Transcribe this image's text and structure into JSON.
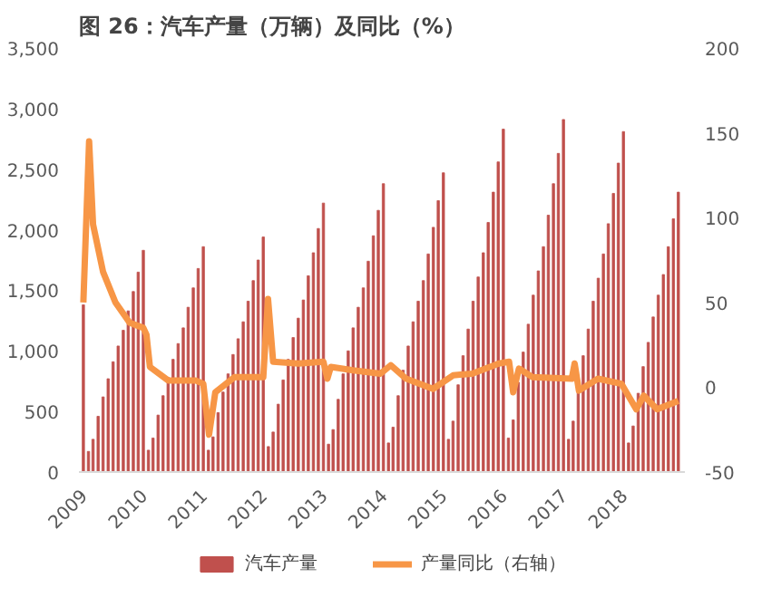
{
  "chart_data": {
    "type": "bar",
    "title": "图 26：汽车产量（万辆）及同比（%）",
    "x": [
      "2009-01",
      "2009-02",
      "2009-03",
      "2009-04",
      "2009-05",
      "2009-06",
      "2009-07",
      "2009-08",
      "2009-09",
      "2009-10",
      "2009-11",
      "2009-12",
      "2010-01",
      "2010-02",
      "2010-03",
      "2010-04",
      "2010-05",
      "2010-06",
      "2010-07",
      "2010-08",
      "2010-09",
      "2010-10",
      "2010-11",
      "2010-12",
      "2011-01",
      "2011-02",
      "2011-03",
      "2011-04",
      "2011-05",
      "2011-06",
      "2011-07",
      "2011-08",
      "2011-09",
      "2011-10",
      "2011-11",
      "2011-12",
      "2012-01",
      "2012-02",
      "2012-03",
      "2012-04",
      "2012-05",
      "2012-06",
      "2012-07",
      "2012-08",
      "2012-09",
      "2012-10",
      "2012-11",
      "2012-12",
      "2013-01",
      "2013-02",
      "2013-03",
      "2013-04",
      "2013-05",
      "2013-06",
      "2013-07",
      "2013-08",
      "2013-09",
      "2013-10",
      "2013-11",
      "2013-12",
      "2014-01",
      "2014-02",
      "2014-03",
      "2014-04",
      "2014-05",
      "2014-06",
      "2014-07",
      "2014-08",
      "2014-09",
      "2014-10",
      "2014-11",
      "2014-12",
      "2015-01",
      "2015-02",
      "2015-03",
      "2015-04",
      "2015-05",
      "2015-06",
      "2015-07",
      "2015-08",
      "2015-09",
      "2015-10",
      "2015-11",
      "2015-12",
      "2016-01",
      "2016-02",
      "2016-03",
      "2016-04",
      "2016-05",
      "2016-06",
      "2016-07",
      "2016-08",
      "2016-09",
      "2016-10",
      "2016-11",
      "2016-12",
      "2017-01",
      "2017-02",
      "2017-03",
      "2017-04",
      "2017-05",
      "2017-06",
      "2017-07",
      "2017-08",
      "2017-09",
      "2017-10",
      "2017-11",
      "2017-12",
      "2018-01",
      "2018-02",
      "2018-03",
      "2018-04",
      "2018-05",
      "2018-06",
      "2018-07",
      "2018-08",
      "2018-09",
      "2018-10",
      "2018-11",
      "2018-12"
    ],
    "series": [
      {
        "name": "汽车产量",
        "color": "#c0504d",
        "values": [
          1380,
          170,
          270,
          460,
          620,
          770,
          910,
          1040,
          1170,
          1330,
          1490,
          1650,
          1830,
          180,
          280,
          470,
          630,
          780,
          930,
          1060,
          1190,
          1360,
          1520,
          1680,
          1860,
          180,
          290,
          490,
          660,
          810,
          970,
          1100,
          1240,
          1410,
          1580,
          1750,
          1940,
          210,
          330,
          560,
          760,
          930,
          1110,
          1270,
          1420,
          1620,
          1810,
          2010,
          2220,
          230,
          350,
          600,
          810,
          1000,
          1190,
          1360,
          1520,
          1740,
          1950,
          2160,
          2380,
          240,
          370,
          630,
          840,
          1040,
          1240,
          1410,
          1580,
          1800,
          2020,
          2240,
          2470,
          270,
          420,
          720,
          960,
          1180,
          1410,
          1610,
          1810,
          2060,
          2310,
          2560,
          2830,
          280,
          430,
          740,
          990,
          1220,
          1460,
          1660,
          1860,
          2120,
          2380,
          2630,
          2910,
          270,
          420,
          710,
          960,
          1180,
          1410,
          1600,
          1800,
          2050,
          2300,
          2550,
          2810,
          240,
          380,
          650,
          870,
          1070,
          1280,
          1460,
          1630,
          1860,
          2090,
          2310
        ]
      },
      {
        "name": "产量同比（右轴）",
        "type": "line",
        "axis": "y2",
        "color": "#f79646",
        "x": [
          "2009-01-01",
          "2009-02-05",
          "2009-03-01",
          "2009-05-01",
          "2009-07-15",
          "2009-10-10",
          "2010-01-01",
          "2010-01-20",
          "2010-02-10",
          "2010-06-01",
          "2010-11-15",
          "2011-01-01",
          "2011-02-05",
          "2011-03-15",
          "2011-07-10",
          "2012-01-01",
          "2012-01-30",
          "2012-03-01",
          "2012-08-01",
          "2013-01-01",
          "2013-01-25",
          "2013-02-15",
          "2013-07-01",
          "2013-12-15",
          "2014-02-15",
          "2014-05-20",
          "2014-10-30",
          "2015-03-01",
          "2015-06-25",
          "2015-12-05",
          "2016-02-05",
          "2016-03-01",
          "2016-04-05",
          "2016-06-25",
          "2017-02-20",
          "2017-03-10",
          "2017-04-05",
          "2017-07-30",
          "2017-12-20",
          "2018-03-20",
          "2018-05-05",
          "2018-07-25",
          "2018-12-01"
        ],
        "values": [
          50,
          145,
          96,
          68,
          50,
          38,
          35,
          31,
          12,
          4,
          4,
          2,
          -28,
          -3,
          6,
          6,
          52,
          15,
          14,
          15,
          5,
          12,
          10,
          8,
          13,
          5,
          -1,
          7,
          8,
          14,
          15,
          -3,
          11,
          6,
          5,
          14,
          -2,
          5,
          2,
          -13,
          -5,
          -13,
          -8
        ]
      }
    ],
    "xlim": [
      "2008-12-05",
      "2019-01-10"
    ],
    "xticks": [
      "2009",
      "2010",
      "2011",
      "2012",
      "2013",
      "2014",
      "2015",
      "2016",
      "2017",
      "2018"
    ],
    "ylim": [
      0,
      3500
    ],
    "yticks": [
      0,
      500,
      {
        "value": 1000,
        "label": "1,000"
      },
      {
        "value": 1500,
        "label": "1,500"
      },
      {
        "value": 2000,
        "label": "2,000"
      },
      {
        "value": 2500,
        "label": "2,500"
      },
      {
        "value": 3000,
        "label": "3,000"
      },
      {
        "value": 3500,
        "label": "3,500"
      }
    ],
    "y2lim": [
      -50,
      200
    ],
    "y2ticks": [
      -50,
      0,
      50,
      100,
      150,
      200
    ],
    "grid": false,
    "legend": "bottom"
  }
}
